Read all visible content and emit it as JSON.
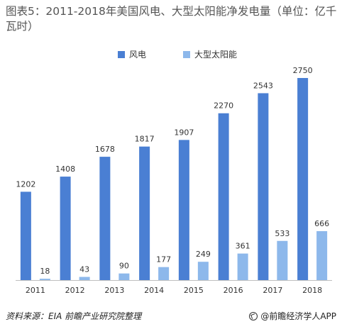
{
  "title": "图表5：2011-2018年美国风电、大型太阳能净发电量（单位：亿千瓦时）",
  "source": "资料来源：EIA 前瞻产业研究院整理",
  "brand": "@前瞻经济学人APP",
  "colors": {
    "wind": "#4a7fd3",
    "solar": "#8db8eb",
    "axis": "#bfbfbf",
    "text": "#333333"
  },
  "chart_data": {
    "type": "bar",
    "title": "图表5：2011-2018年美国风电、大型太阳能净发电量（单位：亿千瓦时）",
    "categories": [
      "2011",
      "2012",
      "2013",
      "2014",
      "2015",
      "2016",
      "2017",
      "2018"
    ],
    "series": [
      {
        "name": "风电",
        "values": [
          1202,
          1408,
          1678,
          1817,
          1907,
          2270,
          2543,
          2750
        ]
      },
      {
        "name": "大型太阳能",
        "values": [
          18,
          43,
          90,
          177,
          249,
          361,
          533,
          666
        ]
      }
    ],
    "ylim": [
      0,
      2750
    ],
    "legend": "top-center",
    "grid": false
  }
}
